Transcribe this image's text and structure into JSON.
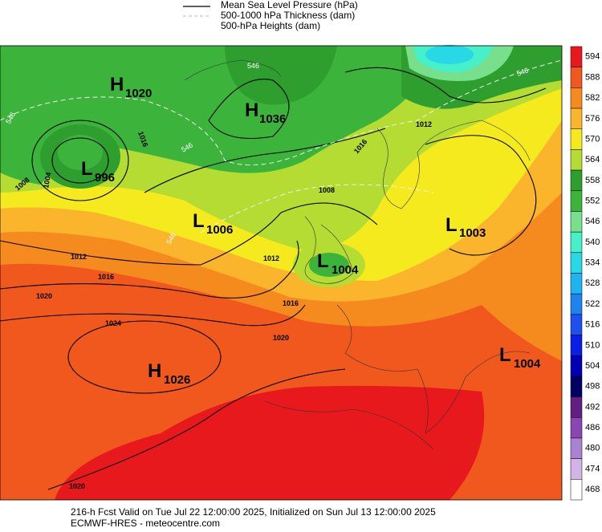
{
  "legend": [
    "Mean Sea Level Pressure (hPa)",
    "500-1000 hPa Thickness (dam)",
    "500-hPa Heights (dam)"
  ],
  "colorbar": {
    "levels": [
      {
        "label": "594",
        "color": "#e8191c"
      },
      {
        "label": "588",
        "color": "#f0581e"
      },
      {
        "label": "582",
        "color": "#f58a1f"
      },
      {
        "label": "576",
        "color": "#fab52c"
      },
      {
        "label": "570",
        "color": "#f5ea1e"
      },
      {
        "label": "564",
        "color": "#b4dc32"
      },
      {
        "label": "558",
        "color": "#2e9e2e"
      },
      {
        "label": "552",
        "color": "#3cb43c"
      },
      {
        "label": "546",
        "color": "#78e08c"
      },
      {
        "label": "540",
        "color": "#46f0c8"
      },
      {
        "label": "534",
        "color": "#28d8e6"
      },
      {
        "label": "528",
        "color": "#1eb4f0"
      },
      {
        "label": "522",
        "color": "#1e82f0"
      },
      {
        "label": "516",
        "color": "#1e50f0"
      },
      {
        "label": "510",
        "color": "#0a1ee6"
      },
      {
        "label": "504",
        "color": "#0000b4"
      },
      {
        "label": "498",
        "color": "#000064"
      },
      {
        "label": "492",
        "color": "#641e82"
      },
      {
        "label": "486",
        "color": "#8c46b4"
      },
      {
        "label": "480",
        "color": "#aa82d2"
      },
      {
        "label": "474",
        "color": "#d2b4e6"
      },
      {
        "label": "468",
        "color": "#ffffff"
      }
    ]
  },
  "systems": [
    {
      "letter": "H",
      "value": "1020"
    },
    {
      "letter": "H",
      "value": "1036"
    },
    {
      "letter": "L",
      "value": "996"
    },
    {
      "letter": "L",
      "value": "1006"
    },
    {
      "letter": "L",
      "value": "1004"
    },
    {
      "letter": "L",
      "value": "1003"
    },
    {
      "letter": "H",
      "value": "1026"
    },
    {
      "letter": "L",
      "value": "1004"
    }
  ],
  "isobar_labels": [
    "1008",
    "1004",
    "1016",
    "1012",
    "1016",
    "1020",
    "1024",
    "1020",
    "1020",
    "1016",
    "1012",
    "1016",
    "1008",
    "1012"
  ],
  "thickness_labels": [
    "546",
    "546",
    "546",
    "546",
    "546"
  ],
  "footer": [
    "216-h Fcst Valid on Tue Jul 22 12:00:00 2025, Initialized on Sun Jul 13 12:00:00 2025",
    "ECMWF-HRES  - meteocentre.com"
  ]
}
